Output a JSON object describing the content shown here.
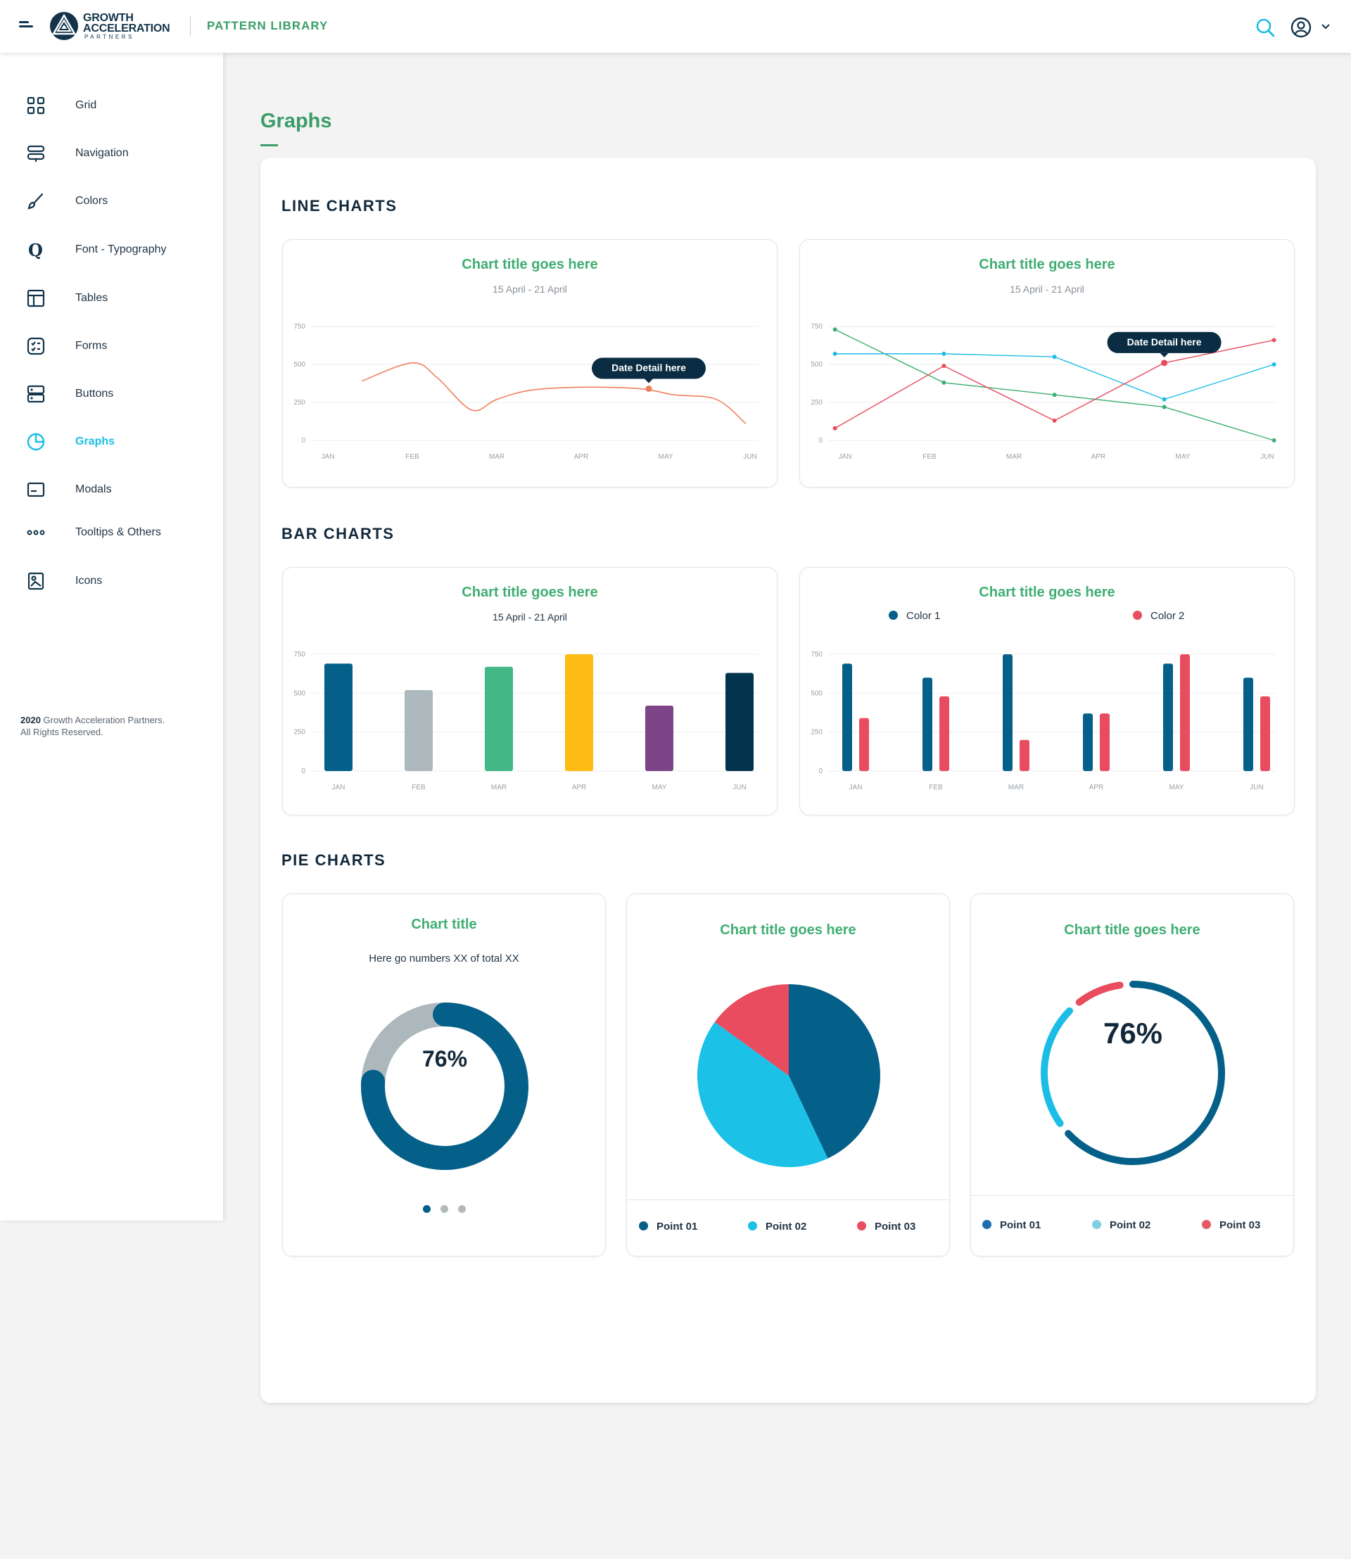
{
  "header": {
    "logo_line1": "GROWTH",
    "logo_line2": "ACCELERATION",
    "logo_line3": "PARTNERS",
    "app_title": "PATTERN LIBRARY",
    "icons": [
      "menu-icon",
      "search-icon",
      "user-icon",
      "chevron-down-icon"
    ]
  },
  "sidebar": {
    "items": [
      {
        "label": "Grid",
        "icon": "grid-icon"
      },
      {
        "label": "Navigation",
        "icon": "navigation-icon"
      },
      {
        "label": "Colors",
        "icon": "brush-icon"
      },
      {
        "label": "Font - Typography",
        "icon": "typography-icon"
      },
      {
        "label": "Tables",
        "icon": "table-icon"
      },
      {
        "label": "Forms",
        "icon": "form-icon"
      },
      {
        "label": "Buttons",
        "icon": "buttons-icon"
      },
      {
        "label": "Graphs",
        "icon": "pie-chart-icon",
        "active": true
      },
      {
        "label": "Modals",
        "icon": "modal-icon"
      },
      {
        "label": "Tooltips & Others",
        "icon": "dots-icon"
      },
      {
        "label": "Icons",
        "icon": "image-icon"
      }
    ],
    "footer_year": "2020",
    "footer_line1": "Growth Acceleration Partners.",
    "footer_line2": "All Rights Reserved."
  },
  "page": {
    "title": "Graphs",
    "sections": {
      "line": "LINE CHARTS",
      "bar": "BAR CHARTS",
      "pie": "PIE CHARTS"
    }
  },
  "colors": {
    "green": "#3fae72",
    "navy": "#12334a",
    "teal": "#046088",
    "cyan": "#1bbde6",
    "coral": "#f0805f",
    "red": "#e94b5f",
    "gray": "#adb8bd",
    "yellow": "#fdbb13",
    "purple": "#7d4488",
    "dark": "#02344e"
  },
  "chart_data": [
    {
      "type": "line",
      "title": "Chart title goes here",
      "subtitle": "15 April - 21 April",
      "categories": [
        "JAN",
        "FEB",
        "MAR",
        "APR",
        "MAY",
        "JUN"
      ],
      "yticks": [
        0,
        250,
        500,
        750
      ],
      "ylim": [
        0,
        750
      ],
      "smooth": true,
      "series": [
        {
          "color": "#f0805f",
          "x": [
            0.4,
            1.0,
            1.3,
            1.7,
            2.0,
            2.4,
            3.0,
            3.7,
            4.1,
            4.6,
            4.95
          ],
          "values": [
            390,
            510,
            410,
            200,
            270,
            330,
            350,
            340,
            300,
            270,
            110
          ]
        }
      ],
      "tooltip": {
        "label": "Date Detail here",
        "x": 3.8,
        "y": 340,
        "color": "#f0805f"
      }
    },
    {
      "type": "line",
      "title": "Chart title goes here",
      "subtitle": "15 April - 21 April",
      "categories": [
        "JAN",
        "FEB",
        "MAR",
        "APR",
        "MAY",
        "JUN"
      ],
      "yticks": [
        0,
        250,
        500,
        750
      ],
      "ylim": [
        0,
        750
      ],
      "smooth": false,
      "series": [
        {
          "color": "#3fae72",
          "x": [
            -0.12,
            1.17,
            2.48,
            3.78,
            5.08
          ],
          "values": [
            730,
            380,
            300,
            220,
            0
          ]
        },
        {
          "color": "#1bbde6",
          "x": [
            -0.12,
            1.17,
            2.48,
            3.78,
            5.08
          ],
          "values": [
            570,
            570,
            550,
            270,
            500
          ]
        },
        {
          "color": "#e94b5f",
          "x": [
            -0.12,
            1.17,
            2.48,
            3.78,
            5.08
          ],
          "values": [
            80,
            490,
            130,
            510,
            660
          ]
        }
      ],
      "tooltip": {
        "label": "Date Detail here",
        "x": 3.78,
        "y": 510,
        "color": "#e94b5f"
      }
    },
    {
      "type": "bar",
      "title": "Chart title goes here",
      "subtitle": "15 April - 21 April",
      "categories": [
        "JAN",
        "FEB",
        "MAR",
        "APR",
        "MAY",
        "JUN"
      ],
      "yticks": [
        0,
        250,
        500,
        750
      ],
      "ylim": [
        0,
        750
      ],
      "values": [
        690,
        520,
        670,
        750,
        420,
        630
      ],
      "colors": [
        "#046088",
        "#adb8bd",
        "#43b786",
        "#fdbb13",
        "#7d4488",
        "#02344e"
      ]
    },
    {
      "type": "bar",
      "title": "Chart title goes here",
      "categories": [
        "JAN",
        "FEB",
        "MAR",
        "APR",
        "MAY",
        "JUN"
      ],
      "yticks": [
        0,
        250,
        500,
        750
      ],
      "ylim": [
        0,
        750
      ],
      "series": [
        {
          "name": "Color 1",
          "color": "#046088",
          "values": [
            690,
            600,
            750,
            370,
            690,
            600
          ]
        },
        {
          "name": "Color 2",
          "color": "#e94b5f",
          "values": [
            340,
            480,
            200,
            370,
            750,
            480
          ]
        }
      ]
    },
    {
      "type": "pie",
      "variant": "donut",
      "title": "Chart title",
      "subtitle": "Here go numbers XX of total XX",
      "center_label": "76%",
      "percent": 76,
      "colors": [
        "#046088",
        "#adb8bd"
      ],
      "pager": {
        "count": 3,
        "active": 0
      }
    },
    {
      "type": "pie",
      "title": "Chart title goes here",
      "slices": [
        {
          "name": "Point 01",
          "value": 43,
          "color": "#046088"
        },
        {
          "name": "Point 02",
          "value": 42,
          "color": "#1bc1e6"
        },
        {
          "name": "Point 03",
          "value": 15,
          "color": "#e94b5f"
        }
      ]
    },
    {
      "type": "pie",
      "variant": "ring",
      "title": "Chart title goes here",
      "center_label": "76%",
      "slices": [
        {
          "name": "Point 01",
          "value": 63,
          "color": "#046088"
        },
        {
          "name": "Point 02",
          "value": 22,
          "color": "#1bbde6"
        },
        {
          "name": "Point 03",
          "value": 8,
          "color": "#e94b5f"
        }
      ],
      "legend_colors": [
        "#1e6fae",
        "#7fcfe2",
        "#e45a63"
      ]
    }
  ]
}
